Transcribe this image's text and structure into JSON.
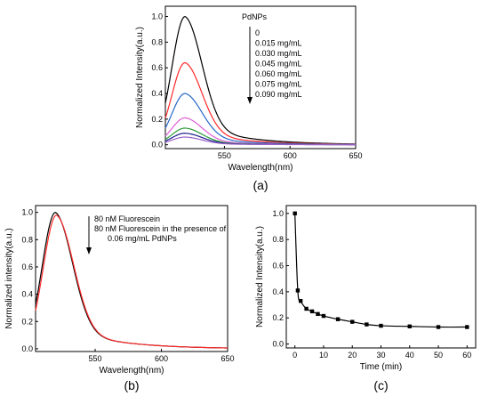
{
  "chart_data": [
    {
      "panel_label": "(a)",
      "type": "line",
      "xlabel": "Wavelength(nm)",
      "ylabel": "Normalized Intensity(a.u.)",
      "xlim": [
        505,
        650
      ],
      "ylim": [
        -0.03,
        1.08
      ],
      "x_ticks": [
        550,
        600,
        650
      ],
      "y_ticks": [
        0.0,
        0.2,
        0.4,
        0.6,
        0.8,
        1.0
      ],
      "legend_title": "PdNPs",
      "legend_entries": [
        "0",
        "0.015 mg/mL",
        "0.030 mg/mL",
        "0.045 mg/mL",
        "0.060 mg/mL",
        "0.075 mg/mL",
        "0.090 mg/mL"
      ],
      "peak_x": 520,
      "series": [
        {
          "color": "#000000",
          "peak": 1.0
        },
        {
          "color": "#ff2a2a",
          "peak": 0.64
        },
        {
          "color": "#2468c8",
          "peak": 0.4
        },
        {
          "color": "#e060d8",
          "peak": 0.21
        },
        {
          "color": "#2a9a3a",
          "peak": 0.13
        },
        {
          "color": "#1c1c8c",
          "peak": 0.09
        },
        {
          "color": "#9a60c8",
          "peak": 0.06
        }
      ]
    },
    {
      "panel_label": "(b)",
      "type": "line",
      "xlabel": "Wavelength(nm)",
      "ylabel": "Normalized intensity(a.u.)",
      "xlim": [
        505,
        650
      ],
      "ylim": [
        -0.02,
        1.05
      ],
      "x_ticks": [
        550,
        600,
        650
      ],
      "y_ticks": [
        0.0,
        0.2,
        0.4,
        0.6,
        0.8,
        1.0
      ],
      "legend_lines": [
        "80 nM Fluorescein",
        "80 nM Fluorescein in the presence of",
        "0.06 mg/mL PdNPs"
      ],
      "series": [
        {
          "color": "#000000",
          "peak": 1.0,
          "peak_x": 520
        },
        {
          "color": "#ff2a2a",
          "peak": 0.98,
          "peak_x": 520.8
        }
      ]
    },
    {
      "panel_label": "(c)",
      "type": "line",
      "xlabel": "Time (min)",
      "ylabel": "Normalized Intensity(a.u.)",
      "xlim": [
        -3,
        63
      ],
      "ylim": [
        -0.03,
        1.06
      ],
      "x_ticks": [
        0,
        10,
        20,
        30,
        40,
        50,
        60
      ],
      "y_ticks": [
        0.0,
        0.2,
        0.4,
        0.6,
        0.8,
        1.0
      ],
      "x": [
        0,
        1,
        2,
        4,
        6,
        8,
        10,
        15,
        20,
        25,
        30,
        40,
        50,
        60
      ],
      "y": [
        1.0,
        0.41,
        0.33,
        0.27,
        0.25,
        0.23,
        0.215,
        0.19,
        0.17,
        0.15,
        0.14,
        0.135,
        0.13,
        0.13
      ]
    }
  ]
}
